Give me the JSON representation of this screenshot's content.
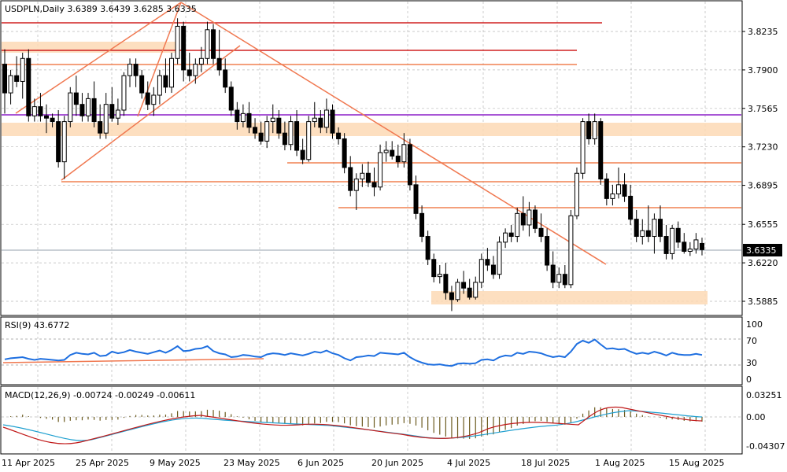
{
  "chart_data": {
    "type": "candlestick",
    "symbol": "USDPLN",
    "timeframe": "Daily",
    "title": "USDPLN,Daily  3.6389 3.6439 3.6285 3.6335",
    "ohlc_header": {
      "open": "3.6389",
      "high": "3.6439",
      "low": "3.6285",
      "close": "3.6335"
    },
    "price_axis": {
      "ticks": [
        3.8235,
        3.79,
        3.7565,
        3.723,
        3.6895,
        3.6555,
        3.622,
        3.5885
      ],
      "tick_labels": [
        "3.8235",
        "3.7900",
        "3.7565",
        "3.7230",
        "3.6895",
        "3.6555",
        "3.6220",
        "3.5885"
      ],
      "current_price_label": "3.6335",
      "current_price": 3.6335
    },
    "date_axis": {
      "labels": [
        "11 Apr 2025",
        "25 Apr 2025",
        "9 May 2025",
        "23 May 2025",
        "6 Jun 2025",
        "20 Jun 2025",
        "4 Jul 2025",
        "18 Jul 2025",
        "1 Aug 2025",
        "15 Aug 2025"
      ]
    },
    "candles": [
      {
        "o": 3.795,
        "h": 3.808,
        "l": 3.752,
        "c": 3.77
      },
      {
        "o": 3.77,
        "h": 3.79,
        "l": 3.76,
        "c": 3.785
      },
      {
        "o": 3.785,
        "h": 3.802,
        "l": 3.775,
        "c": 3.78
      },
      {
        "o": 3.78,
        "h": 3.805,
        "l": 3.765,
        "c": 3.8
      },
      {
        "o": 3.8,
        "h": 3.808,
        "l": 3.745,
        "c": 3.75
      },
      {
        "o": 3.75,
        "h": 3.765,
        "l": 3.745,
        "c": 3.758
      },
      {
        "o": 3.758,
        "h": 3.77,
        "l": 3.745,
        "c": 3.75
      },
      {
        "o": 3.75,
        "h": 3.76,
        "l": 3.735,
        "c": 3.748
      },
      {
        "o": 3.748,
        "h": 3.752,
        "l": 3.74,
        "c": 3.745
      },
      {
        "o": 3.745,
        "h": 3.755,
        "l": 3.705,
        "c": 3.71
      },
      {
        "o": 3.71,
        "h": 3.75,
        "l": 3.695,
        "c": 3.745
      },
      {
        "o": 3.745,
        "h": 3.775,
        "l": 3.74,
        "c": 3.77
      },
      {
        "o": 3.77,
        "h": 3.785,
        "l": 3.75,
        "c": 3.76
      },
      {
        "o": 3.76,
        "h": 3.77,
        "l": 3.745,
        "c": 3.75
      },
      {
        "o": 3.75,
        "h": 3.77,
        "l": 3.745,
        "c": 3.765
      },
      {
        "o": 3.765,
        "h": 3.78,
        "l": 3.74,
        "c": 3.745
      },
      {
        "o": 3.745,
        "h": 3.76,
        "l": 3.73,
        "c": 3.735
      },
      {
        "o": 3.735,
        "h": 3.77,
        "l": 3.73,
        "c": 3.76
      },
      {
        "o": 3.76,
        "h": 3.775,
        "l": 3.745,
        "c": 3.748
      },
      {
        "o": 3.748,
        "h": 3.765,
        "l": 3.742,
        "c": 3.755
      },
      {
        "o": 3.755,
        "h": 3.788,
        "l": 3.75,
        "c": 3.785
      },
      {
        "o": 3.785,
        "h": 3.8,
        "l": 3.775,
        "c": 3.795
      },
      {
        "o": 3.795,
        "h": 3.8,
        "l": 3.775,
        "c": 3.785
      },
      {
        "o": 3.785,
        "h": 3.79,
        "l": 3.765,
        "c": 3.77
      },
      {
        "o": 3.77,
        "h": 3.78,
        "l": 3.755,
        "c": 3.76
      },
      {
        "o": 3.76,
        "h": 3.775,
        "l": 3.75,
        "c": 3.768
      },
      {
        "o": 3.768,
        "h": 3.79,
        "l": 3.76,
        "c": 3.785
      },
      {
        "o": 3.785,
        "h": 3.8,
        "l": 3.77,
        "c": 3.775
      },
      {
        "o": 3.775,
        "h": 3.805,
        "l": 3.77,
        "c": 3.8
      },
      {
        "o": 3.8,
        "h": 3.835,
        "l": 3.795,
        "c": 3.828
      },
      {
        "o": 3.828,
        "h": 3.832,
        "l": 3.78,
        "c": 3.79
      },
      {
        "o": 3.79,
        "h": 3.805,
        "l": 3.78,
        "c": 3.785
      },
      {
        "o": 3.785,
        "h": 3.8,
        "l": 3.778,
        "c": 3.795
      },
      {
        "o": 3.795,
        "h": 3.81,
        "l": 3.788,
        "c": 3.8
      },
      {
        "o": 3.8,
        "h": 3.832,
        "l": 3.795,
        "c": 3.825
      },
      {
        "o": 3.825,
        "h": 3.83,
        "l": 3.795,
        "c": 3.8
      },
      {
        "o": 3.8,
        "h": 3.825,
        "l": 3.785,
        "c": 3.79
      },
      {
        "o": 3.79,
        "h": 3.8,
        "l": 3.77,
        "c": 3.775
      },
      {
        "o": 3.775,
        "h": 3.78,
        "l": 3.75,
        "c": 3.755
      },
      {
        "o": 3.755,
        "h": 3.762,
        "l": 3.738,
        "c": 3.745
      },
      {
        "o": 3.745,
        "h": 3.76,
        "l": 3.74,
        "c": 3.752
      },
      {
        "o": 3.752,
        "h": 3.762,
        "l": 3.735,
        "c": 3.74
      },
      {
        "o": 3.74,
        "h": 3.748,
        "l": 3.73,
        "c": 3.735
      },
      {
        "o": 3.735,
        "h": 3.745,
        "l": 3.725,
        "c": 3.728
      },
      {
        "o": 3.728,
        "h": 3.75,
        "l": 3.722,
        "c": 3.745
      },
      {
        "o": 3.745,
        "h": 3.76,
        "l": 3.735,
        "c": 3.748
      },
      {
        "o": 3.748,
        "h": 3.755,
        "l": 3.73,
        "c": 3.735
      },
      {
        "o": 3.735,
        "h": 3.745,
        "l": 3.72,
        "c": 3.725
      },
      {
        "o": 3.725,
        "h": 3.75,
        "l": 3.72,
        "c": 3.745
      },
      {
        "o": 3.745,
        "h": 3.755,
        "l": 3.715,
        "c": 3.72
      },
      {
        "o": 3.72,
        "h": 3.73,
        "l": 3.708,
        "c": 3.712
      },
      {
        "o": 3.712,
        "h": 3.75,
        "l": 3.71,
        "c": 3.745
      },
      {
        "o": 3.745,
        "h": 3.762,
        "l": 3.74,
        "c": 3.748
      },
      {
        "o": 3.748,
        "h": 3.755,
        "l": 3.735,
        "c": 3.74
      },
      {
        "o": 3.74,
        "h": 3.765,
        "l": 3.735,
        "c": 3.755
      },
      {
        "o": 3.755,
        "h": 3.76,
        "l": 3.73,
        "c": 3.735
      },
      {
        "o": 3.735,
        "h": 3.74,
        "l": 3.725,
        "c": 3.73
      },
      {
        "o": 3.73,
        "h": 3.735,
        "l": 3.7,
        "c": 3.705
      },
      {
        "o": 3.705,
        "h": 3.715,
        "l": 3.68,
        "c": 3.685
      },
      {
        "o": 3.685,
        "h": 3.7,
        "l": 3.668,
        "c": 3.695
      },
      {
        "o": 3.695,
        "h": 3.708,
        "l": 3.688,
        "c": 3.7
      },
      {
        "o": 3.7,
        "h": 3.71,
        "l": 3.688,
        "c": 3.692
      },
      {
        "o": 3.692,
        "h": 3.705,
        "l": 3.68,
        "c": 3.688
      },
      {
        "o": 3.688,
        "h": 3.725,
        "l": 3.685,
        "c": 3.718
      },
      {
        "o": 3.718,
        "h": 3.728,
        "l": 3.71,
        "c": 3.72
      },
      {
        "o": 3.72,
        "h": 3.728,
        "l": 3.712,
        "c": 3.715
      },
      {
        "o": 3.715,
        "h": 3.725,
        "l": 3.705,
        "c": 3.71
      },
      {
        "o": 3.71,
        "h": 3.735,
        "l": 3.705,
        "c": 3.725
      },
      {
        "o": 3.725,
        "h": 3.73,
        "l": 3.685,
        "c": 3.69
      },
      {
        "o": 3.69,
        "h": 3.698,
        "l": 3.66,
        "c": 3.665
      },
      {
        "o": 3.665,
        "h": 3.672,
        "l": 3.64,
        "c": 3.645
      },
      {
        "o": 3.645,
        "h": 3.65,
        "l": 3.62,
        "c": 3.625
      },
      {
        "o": 3.625,
        "h": 3.63,
        "l": 3.605,
        "c": 3.61
      },
      {
        "o": 3.61,
        "h": 3.62,
        "l": 3.604,
        "c": 3.612
      },
      {
        "o": 3.612,
        "h": 3.622,
        "l": 3.59,
        "c": 3.596
      },
      {
        "o": 3.596,
        "h": 3.602,
        "l": 3.58,
        "c": 3.59
      },
      {
        "o": 3.59,
        "h": 3.608,
        "l": 3.588,
        "c": 3.605
      },
      {
        "o": 3.605,
        "h": 3.615,
        "l": 3.595,
        "c": 3.6
      },
      {
        "o": 3.6,
        "h": 3.608,
        "l": 3.59,
        "c": 3.592
      },
      {
        "o": 3.592,
        "h": 3.61,
        "l": 3.59,
        "c": 3.605
      },
      {
        "o": 3.605,
        "h": 3.63,
        "l": 3.6,
        "c": 3.625
      },
      {
        "o": 3.625,
        "h": 3.635,
        "l": 3.615,
        "c": 3.62
      },
      {
        "o": 3.62,
        "h": 3.628,
        "l": 3.608,
        "c": 3.612
      },
      {
        "o": 3.612,
        "h": 3.645,
        "l": 3.608,
        "c": 3.64
      },
      {
        "o": 3.64,
        "h": 3.652,
        "l": 3.635,
        "c": 3.648
      },
      {
        "o": 3.648,
        "h": 3.655,
        "l": 3.64,
        "c": 3.645
      },
      {
        "o": 3.645,
        "h": 3.67,
        "l": 3.64,
        "c": 3.665
      },
      {
        "o": 3.665,
        "h": 3.68,
        "l": 3.65,
        "c": 3.655
      },
      {
        "o": 3.655,
        "h": 3.675,
        "l": 3.645,
        "c": 3.668
      },
      {
        "o": 3.668,
        "h": 3.672,
        "l": 3.648,
        "c": 3.652
      },
      {
        "o": 3.652,
        "h": 3.665,
        "l": 3.64,
        "c": 3.645
      },
      {
        "o": 3.645,
        "h": 3.652,
        "l": 3.615,
        "c": 3.62
      },
      {
        "o": 3.62,
        "h": 3.632,
        "l": 3.6,
        "c": 3.605
      },
      {
        "o": 3.605,
        "h": 3.618,
        "l": 3.6,
        "c": 3.612
      },
      {
        "o": 3.612,
        "h": 3.62,
        "l": 3.6,
        "c": 3.603
      },
      {
        "o": 3.603,
        "h": 3.668,
        "l": 3.6,
        "c": 3.663
      },
      {
        "o": 3.663,
        "h": 3.705,
        "l": 3.66,
        "c": 3.7
      },
      {
        "o": 3.7,
        "h": 3.748,
        "l": 3.695,
        "c": 3.745
      },
      {
        "o": 3.745,
        "h": 3.752,
        "l": 3.725,
        "c": 3.73
      },
      {
        "o": 3.73,
        "h": 3.752,
        "l": 3.725,
        "c": 3.745
      },
      {
        "o": 3.745,
        "h": 3.748,
        "l": 3.69,
        "c": 3.695
      },
      {
        "o": 3.695,
        "h": 3.7,
        "l": 3.672,
        "c": 3.678
      },
      {
        "o": 3.678,
        "h": 3.69,
        "l": 3.672,
        "c": 3.682
      },
      {
        "o": 3.682,
        "h": 3.705,
        "l": 3.678,
        "c": 3.69
      },
      {
        "o": 3.69,
        "h": 3.7,
        "l": 3.675,
        "c": 3.68
      },
      {
        "o": 3.68,
        "h": 3.69,
        "l": 3.655,
        "c": 3.66
      },
      {
        "o": 3.66,
        "h": 3.668,
        "l": 3.64,
        "c": 3.645
      },
      {
        "o": 3.645,
        "h": 3.66,
        "l": 3.638,
        "c": 3.65
      },
      {
        "o": 3.65,
        "h": 3.672,
        "l": 3.64,
        "c": 3.645
      },
      {
        "o": 3.645,
        "h": 3.665,
        "l": 3.63,
        "c": 3.66
      },
      {
        "o": 3.66,
        "h": 3.672,
        "l": 3.64,
        "c": 3.645
      },
      {
        "o": 3.645,
        "h": 3.655,
        "l": 3.625,
        "c": 3.63
      },
      {
        "o": 3.63,
        "h": 3.655,
        "l": 3.625,
        "c": 3.652
      },
      {
        "o": 3.652,
        "h": 3.658,
        "l": 3.635,
        "c": 3.64
      },
      {
        "o": 3.64,
        "h": 3.648,
        "l": 3.63,
        "c": 3.632
      },
      {
        "o": 3.632,
        "h": 3.64,
        "l": 3.628,
        "c": 3.634
      },
      {
        "o": 3.634,
        "h": 3.648,
        "l": 3.63,
        "c": 3.642
      },
      {
        "o": 3.6389,
        "h": 3.6439,
        "l": 3.6285,
        "c": 3.6335
      }
    ],
    "rsi": {
      "label": "RSI(9) 43.6772",
      "ticks": [
        100,
        70,
        30,
        0
      ],
      "tick_labels": [
        "100",
        "70",
        "30",
        "0"
      ],
      "values": [
        36,
        38,
        39,
        40,
        37,
        35,
        37,
        36,
        35,
        34,
        35,
        44,
        48,
        46,
        45,
        48,
        42,
        43,
        50,
        47,
        49,
        53,
        50,
        48,
        46,
        49,
        52,
        48,
        53,
        60,
        51,
        52,
        55,
        56,
        60,
        51,
        47,
        45,
        40,
        41,
        44,
        43,
        41,
        40,
        45,
        47,
        46,
        44,
        47,
        45,
        43,
        46,
        50,
        48,
        52,
        47,
        44,
        38,
        34,
        40,
        41,
        43,
        42,
        48,
        47,
        46,
        45,
        48,
        40,
        34,
        30,
        27,
        26,
        27,
        25,
        24,
        28,
        29,
        28,
        29,
        35,
        36,
        34,
        40,
        43,
        42,
        48,
        46,
        50,
        49,
        47,
        43,
        40,
        42,
        40,
        50,
        64,
        70,
        66,
        72,
        63,
        55,
        56,
        54,
        55,
        50,
        46,
        48,
        46,
        50,
        47,
        43,
        48,
        45,
        44,
        44,
        46,
        44
      ]
    },
    "macd": {
      "label": "MACD(12,26,9) -0.00724 -0.00249 -0.00611",
      "ticks": [
        0.03251,
        0.0,
        -0.04307
      ],
      "tick_labels": [
        "0.03251",
        "0.00",
        "-0.04307"
      ]
    }
  }
}
